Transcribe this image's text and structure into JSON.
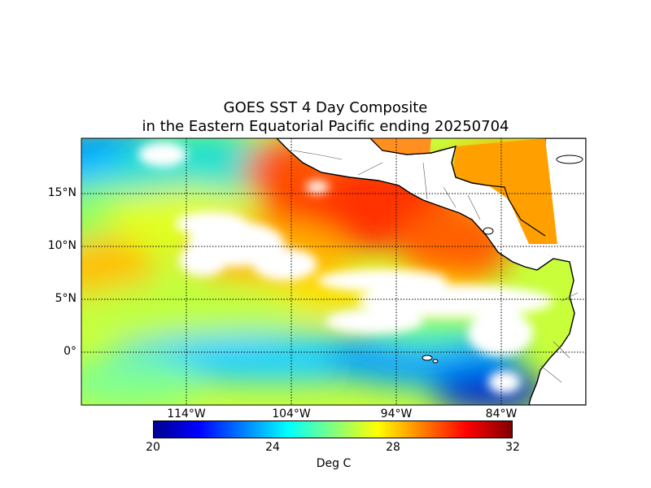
{
  "title_line1": "GOES SST 4 Day Composite",
  "title_line2": "in the Eastern Equatorial Pacific ending 20250704",
  "lat_labels": [
    "15°N",
    "10°N",
    "5°N",
    "0°"
  ],
  "lon_labels": [
    "114°W",
    "104°W",
    "94°W",
    "84°W"
  ],
  "colorbar": {
    "ticks": [
      "20",
      "24",
      "28",
      "32"
    ],
    "label": "Deg C",
    "min": 20,
    "max": 32,
    "colors": [
      "#00008f",
      "#0000ff",
      "#0080ff",
      "#00ffff",
      "#80ff80",
      "#ffff00",
      "#ff8000",
      "#ff0000",
      "#800000"
    ]
  },
  "map_colors": {
    "land": "#ffffff",
    "coast": "#000000",
    "cloud": "#ffffff"
  }
}
